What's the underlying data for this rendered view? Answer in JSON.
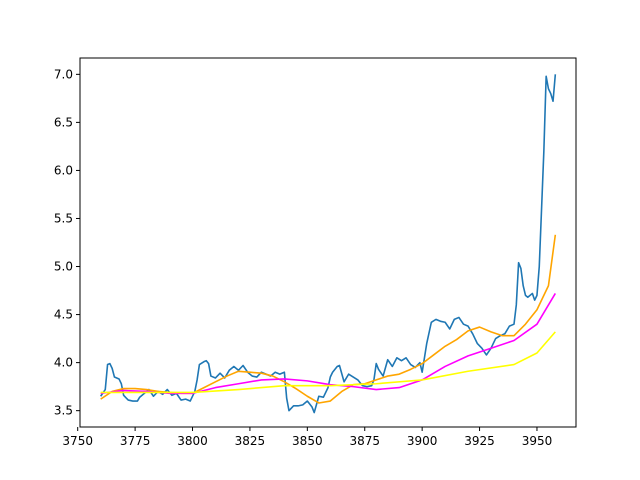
{
  "chart_data": {
    "type": "line",
    "title": "",
    "xlabel": "",
    "ylabel": "",
    "xlim": [
      3751,
      3967
    ],
    "ylim": [
      3.33,
      7.17
    ],
    "x_ticks": [
      3750,
      3775,
      3800,
      3825,
      3850,
      3875,
      3900,
      3925,
      3950
    ],
    "y_ticks": [
      3.5,
      4.0,
      4.5,
      5.0,
      5.5,
      6.0,
      6.5,
      7.0
    ],
    "x_tick_labels": [
      "3750",
      "3775",
      "3800",
      "3825",
      "3850",
      "3875",
      "3900",
      "3925",
      "3950"
    ],
    "y_tick_labels": [
      "3.5",
      "4.0",
      "4.5",
      "5.0",
      "5.5",
      "6.0",
      "6.5",
      "7.0"
    ],
    "grid": false,
    "legend": "none",
    "series": [
      {
        "color": "#1f77b4",
        "points": [
          [
            3760,
            3.65
          ],
          [
            3762,
            3.72
          ],
          [
            3763,
            3.98
          ],
          [
            3764,
            3.99
          ],
          [
            3765,
            3.94
          ],
          [
            3766,
            3.85
          ],
          [
            3768,
            3.83
          ],
          [
            3769,
            3.78
          ],
          [
            3770,
            3.66
          ],
          [
            3772,
            3.61
          ],
          [
            3774,
            3.6
          ],
          [
            3776,
            3.6
          ],
          [
            3777,
            3.64
          ],
          [
            3779,
            3.68
          ],
          [
            3781,
            3.72
          ],
          [
            3783,
            3.65
          ],
          [
            3785,
            3.7
          ],
          [
            3787,
            3.67
          ],
          [
            3789,
            3.72
          ],
          [
            3791,
            3.66
          ],
          [
            3793,
            3.68
          ],
          [
            3795,
            3.61
          ],
          [
            3797,
            3.62
          ],
          [
            3799,
            3.6
          ],
          [
            3801,
            3.7
          ],
          [
            3802,
            3.82
          ],
          [
            3803,
            3.98
          ],
          [
            3805,
            4.01
          ],
          [
            3806,
            4.02
          ],
          [
            3807,
            3.99
          ],
          [
            3808,
            3.86
          ],
          [
            3810,
            3.84
          ],
          [
            3812,
            3.89
          ],
          [
            3814,
            3.84
          ],
          [
            3816,
            3.92
          ],
          [
            3818,
            3.96
          ],
          [
            3820,
            3.92
          ],
          [
            3822,
            3.97
          ],
          [
            3824,
            3.9
          ],
          [
            3826,
            3.86
          ],
          [
            3828,
            3.85
          ],
          [
            3830,
            3.9
          ],
          [
            3832,
            3.88
          ],
          [
            3834,
            3.86
          ],
          [
            3836,
            3.9
          ],
          [
            3838,
            3.88
          ],
          [
            3840,
            3.9
          ],
          [
            3841,
            3.63
          ],
          [
            3842,
            3.5
          ],
          [
            3844,
            3.55
          ],
          [
            3846,
            3.55
          ],
          [
            3848,
            3.56
          ],
          [
            3850,
            3.6
          ],
          [
            3852,
            3.54
          ],
          [
            3853,
            3.48
          ],
          [
            3855,
            3.65
          ],
          [
            3857,
            3.64
          ],
          [
            3859,
            3.74
          ],
          [
            3860,
            3.85
          ],
          [
            3861,
            3.9
          ],
          [
            3863,
            3.96
          ],
          [
            3864,
            3.97
          ],
          [
            3866,
            3.8
          ],
          [
            3868,
            3.88
          ],
          [
            3870,
            3.85
          ],
          [
            3872,
            3.82
          ],
          [
            3874,
            3.76
          ],
          [
            3876,
            3.75
          ],
          [
            3878,
            3.76
          ],
          [
            3879,
            3.82
          ],
          [
            3880,
            3.99
          ],
          [
            3881,
            3.93
          ],
          [
            3883,
            3.86
          ],
          [
            3885,
            4.03
          ],
          [
            3887,
            3.96
          ],
          [
            3889,
            4.05
          ],
          [
            3891,
            4.02
          ],
          [
            3893,
            4.05
          ],
          [
            3895,
            3.98
          ],
          [
            3897,
            3.95
          ],
          [
            3899,
            4.0
          ],
          [
            3900,
            3.9
          ],
          [
            3902,
            4.2
          ],
          [
            3904,
            4.42
          ],
          [
            3906,
            4.45
          ],
          [
            3908,
            4.43
          ],
          [
            3910,
            4.42
          ],
          [
            3912,
            4.35
          ],
          [
            3914,
            4.45
          ],
          [
            3916,
            4.47
          ],
          [
            3918,
            4.4
          ],
          [
            3920,
            4.38
          ],
          [
            3922,
            4.3
          ],
          [
            3924,
            4.2
          ],
          [
            3926,
            4.15
          ],
          [
            3928,
            4.08
          ],
          [
            3930,
            4.15
          ],
          [
            3932,
            4.25
          ],
          [
            3934,
            4.28
          ],
          [
            3936,
            4.3
          ],
          [
            3938,
            4.38
          ],
          [
            3940,
            4.4
          ],
          [
            3941,
            4.6
          ],
          [
            3942,
            5.04
          ],
          [
            3943,
            4.98
          ],
          [
            3944,
            4.8
          ],
          [
            3945,
            4.7
          ],
          [
            3946,
            4.68
          ],
          [
            3948,
            4.72
          ],
          [
            3949,
            4.65
          ],
          [
            3950,
            4.7
          ],
          [
            3951,
            5.0
          ],
          [
            3952,
            5.6
          ],
          [
            3953,
            6.2
          ],
          [
            3954,
            6.98
          ],
          [
            3955,
            6.85
          ],
          [
            3956,
            6.8
          ],
          [
            3957,
            6.72
          ],
          [
            3958,
            7.0
          ]
        ]
      },
      {
        "color": "#ffa500",
        "points": [
          [
            3760,
            3.62
          ],
          [
            3765,
            3.7
          ],
          [
            3770,
            3.73
          ],
          [
            3775,
            3.73
          ],
          [
            3780,
            3.72
          ],
          [
            3785,
            3.7
          ],
          [
            3790,
            3.69
          ],
          [
            3795,
            3.68
          ],
          [
            3800,
            3.68
          ],
          [
            3805,
            3.74
          ],
          [
            3810,
            3.8
          ],
          [
            3815,
            3.86
          ],
          [
            3820,
            3.91
          ],
          [
            3825,
            3.9
          ],
          [
            3830,
            3.89
          ],
          [
            3835,
            3.86
          ],
          [
            3840,
            3.8
          ],
          [
            3845,
            3.73
          ],
          [
            3850,
            3.65
          ],
          [
            3855,
            3.58
          ],
          [
            3860,
            3.6
          ],
          [
            3865,
            3.7
          ],
          [
            3870,
            3.77
          ],
          [
            3875,
            3.78
          ],
          [
            3880,
            3.82
          ],
          [
            3885,
            3.86
          ],
          [
            3890,
            3.88
          ],
          [
            3895,
            3.93
          ],
          [
            3900,
            3.99
          ],
          [
            3905,
            4.08
          ],
          [
            3910,
            4.17
          ],
          [
            3915,
            4.24
          ],
          [
            3920,
            4.33
          ],
          [
            3925,
            4.37
          ],
          [
            3930,
            4.32
          ],
          [
            3935,
            4.28
          ],
          [
            3940,
            4.28
          ],
          [
            3945,
            4.4
          ],
          [
            3950,
            4.55
          ],
          [
            3955,
            4.8
          ],
          [
            3958,
            5.33
          ]
        ]
      },
      {
        "color": "#ff00ff",
        "points": [
          [
            3760,
            3.68
          ],
          [
            3770,
            3.71
          ],
          [
            3780,
            3.7
          ],
          [
            3790,
            3.68
          ],
          [
            3800,
            3.68
          ],
          [
            3810,
            3.74
          ],
          [
            3820,
            3.78
          ],
          [
            3830,
            3.82
          ],
          [
            3840,
            3.83
          ],
          [
            3850,
            3.81
          ],
          [
            3860,
            3.77
          ],
          [
            3870,
            3.75
          ],
          [
            3880,
            3.72
          ],
          [
            3890,
            3.74
          ],
          [
            3900,
            3.82
          ],
          [
            3910,
            3.96
          ],
          [
            3920,
            4.07
          ],
          [
            3930,
            4.15
          ],
          [
            3940,
            4.23
          ],
          [
            3950,
            4.4
          ],
          [
            3958,
            4.72
          ]
        ]
      },
      {
        "color": "#ffff00",
        "points": [
          [
            3760,
            3.69
          ],
          [
            3780,
            3.69
          ],
          [
            3800,
            3.69
          ],
          [
            3820,
            3.72
          ],
          [
            3840,
            3.76
          ],
          [
            3860,
            3.76
          ],
          [
            3880,
            3.78
          ],
          [
            3900,
            3.82
          ],
          [
            3920,
            3.91
          ],
          [
            3940,
            3.98
          ],
          [
            3950,
            4.1
          ],
          [
            3958,
            4.32
          ]
        ]
      }
    ]
  }
}
